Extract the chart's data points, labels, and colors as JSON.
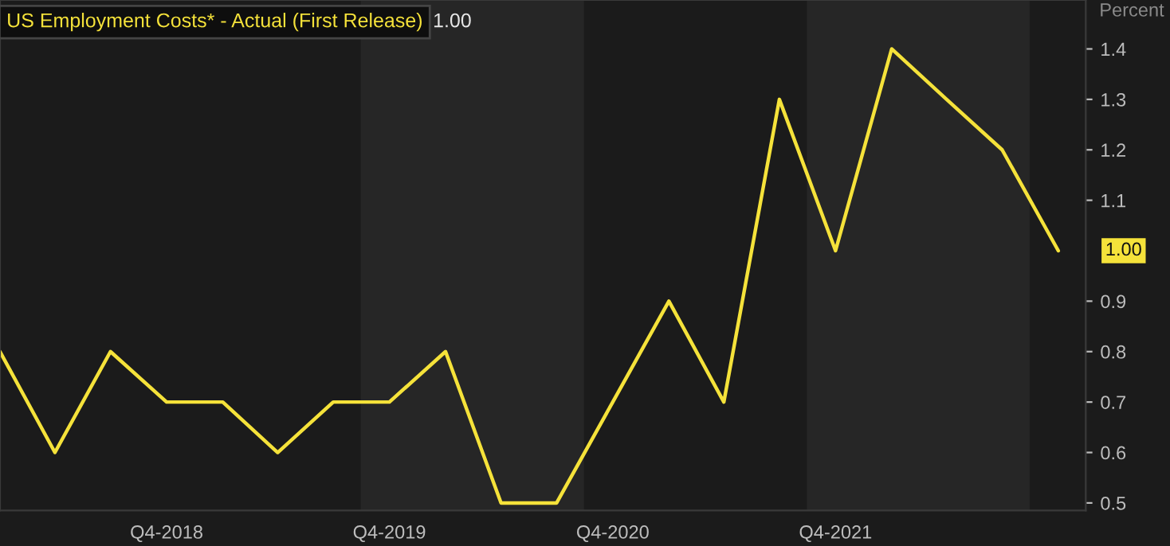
{
  "chart_data": {
    "type": "line",
    "ylabel": "Percent",
    "x": [
      "2018-01",
      "2018-04",
      "2018-07",
      "2018-10",
      "2019-01",
      "2019-04",
      "2019-07",
      "2019-10",
      "2020-01",
      "2020-04",
      "2020-07",
      "2020-10",
      "2021-01",
      "2021-04",
      "2021-07",
      "2021-10",
      "2022-01",
      "2022-04",
      "2022-07",
      "2022-10"
    ],
    "series": [
      {
        "name": "US Employment Costs* - Actual (First Release)",
        "color": "#f5e23a",
        "values": [
          0.8,
          0.6,
          0.8,
          0.7,
          0.7,
          0.6,
          0.7,
          0.7,
          0.8,
          0.5,
          0.5,
          0.7,
          0.9,
          0.7,
          1.3,
          1.0,
          1.4,
          1.3,
          1.2,
          1.0
        ]
      }
    ],
    "xlim": [
      "2018-01",
      "2022-11-15"
    ],
    "ylim": [
      0.485,
      1.497
    ],
    "xticks": [
      {
        "value": "2018-10",
        "label": "Q4-2018"
      },
      {
        "value": "2019-10",
        "label": "Q4-2019"
      },
      {
        "value": "2020-10",
        "label": "Q4-2020"
      },
      {
        "value": "2021-10",
        "label": "Q4-2021"
      }
    ],
    "yticks": [
      0.5,
      0.6,
      0.7,
      0.8,
      0.9,
      1.1,
      1.2,
      1.3,
      1.4
    ],
    "bands": [
      {
        "axis": "x",
        "from": "2019-08-15",
        "to": "2020-08-15",
        "color": "#262626"
      },
      {
        "axis": "x",
        "from": "2021-08-15",
        "to": "2022-08-15",
        "color": "#262626"
      }
    ],
    "annotations": [
      "1.00",
      {
        "text": "1.00",
        "x": "2022-10",
        "y": 1.0
      }
    ],
    "grid": false,
    "legend": "top left",
    "line_style": "solid",
    "marker": "none"
  }
}
